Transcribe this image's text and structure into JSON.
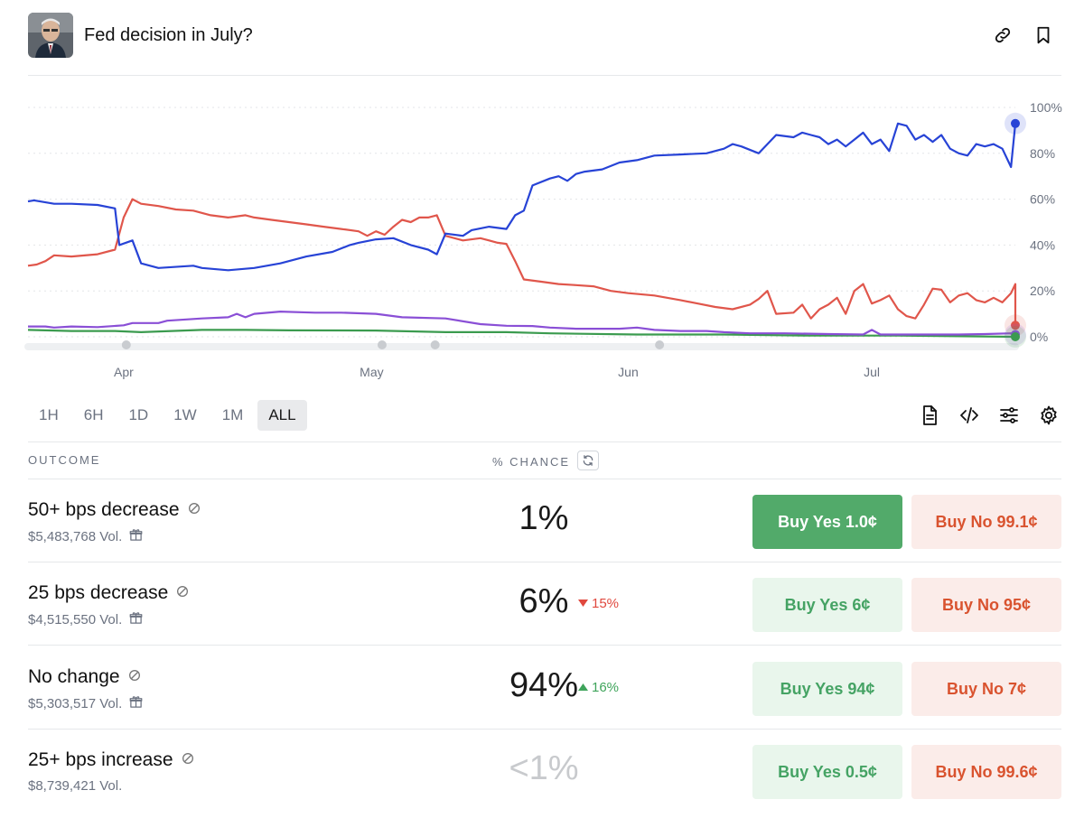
{
  "header": {
    "title": "Fed decision in July?"
  },
  "chart_data": {
    "type": "line",
    "x_labels": [
      "Apr",
      "May",
      "Jun",
      "Jul"
    ],
    "y_ticks": [
      "100%",
      "80%",
      "60%",
      "40%",
      "20%",
      "0%"
    ],
    "ylim": [
      0,
      100
    ],
    "grid": true,
    "series": [
      {
        "color": "#2743d6",
        "points": [
          [
            0,
            59
          ],
          [
            0.7,
            59.5
          ],
          [
            3,
            58
          ],
          [
            5,
            58
          ],
          [
            8,
            57.5
          ],
          [
            10,
            56
          ],
          [
            10.5,
            40
          ],
          [
            12,
            42
          ],
          [
            13,
            32
          ],
          [
            15,
            30
          ],
          [
            19,
            31
          ],
          [
            20,
            30
          ],
          [
            23,
            29
          ],
          [
            26,
            30
          ],
          [
            29,
            32
          ],
          [
            32,
            35
          ],
          [
            35,
            37
          ],
          [
            37,
            40
          ],
          [
            38,
            41
          ],
          [
            40,
            42.5
          ],
          [
            42,
            43
          ],
          [
            44,
            40
          ],
          [
            46,
            38
          ],
          [
            47,
            36
          ],
          [
            48,
            45
          ],
          [
            50,
            44
          ],
          [
            51,
            46.5
          ],
          [
            53,
            48
          ],
          [
            55,
            47
          ],
          [
            56,
            53
          ],
          [
            57,
            55
          ],
          [
            58,
            66
          ],
          [
            60,
            69
          ],
          [
            61,
            70
          ],
          [
            62,
            68
          ],
          [
            63,
            71
          ],
          [
            64,
            72
          ],
          [
            66,
            73
          ],
          [
            68,
            76
          ],
          [
            70,
            77
          ],
          [
            72,
            79
          ],
          [
            75,
            79.5
          ],
          [
            78,
            80
          ],
          [
            80,
            82
          ],
          [
            81,
            84
          ],
          [
            82,
            83
          ],
          [
            84,
            80
          ],
          [
            86,
            88
          ],
          [
            88,
            87
          ],
          [
            89,
            89
          ],
          [
            90,
            88
          ],
          [
            91,
            87
          ],
          [
            92,
            84
          ],
          [
            93,
            86
          ],
          [
            94,
            83
          ],
          [
            95,
            86
          ],
          [
            96,
            89
          ],
          [
            97,
            84
          ],
          [
            98,
            86
          ],
          [
            99,
            81
          ],
          [
            100,
            93
          ],
          [
            101,
            92
          ],
          [
            102,
            86
          ],
          [
            103,
            88
          ],
          [
            104,
            85
          ],
          [
            105,
            88
          ],
          [
            106,
            82
          ],
          [
            107,
            80
          ],
          [
            108,
            79
          ],
          [
            109,
            84
          ],
          [
            110,
            83
          ],
          [
            111,
            84
          ],
          [
            112,
            82
          ],
          [
            113,
            74
          ],
          [
            113.5,
            93
          ]
        ]
      },
      {
        "color": "#e0564b",
        "points": [
          [
            0,
            31
          ],
          [
            1,
            31.5
          ],
          [
            2,
            33
          ],
          [
            3,
            35.5
          ],
          [
            5,
            35
          ],
          [
            8,
            36
          ],
          [
            10,
            38
          ],
          [
            11,
            52
          ],
          [
            12,
            60
          ],
          [
            13,
            58
          ],
          [
            15,
            57
          ],
          [
            17,
            55.5
          ],
          [
            19,
            55
          ],
          [
            21,
            53
          ],
          [
            23,
            52
          ],
          [
            25,
            53
          ],
          [
            26,
            52
          ],
          [
            28,
            51
          ],
          [
            30,
            50
          ],
          [
            32,
            49
          ],
          [
            34,
            48
          ],
          [
            36,
            47
          ],
          [
            38,
            46
          ],
          [
            39,
            44
          ],
          [
            40,
            46
          ],
          [
            41,
            44.5
          ],
          [
            42,
            48
          ],
          [
            43,
            51
          ],
          [
            44,
            50
          ],
          [
            45,
            52
          ],
          [
            46,
            52
          ],
          [
            47,
            53
          ],
          [
            48,
            44
          ],
          [
            50,
            42
          ],
          [
            52,
            43
          ],
          [
            53,
            42
          ],
          [
            54,
            41
          ],
          [
            55,
            40.5
          ],
          [
            56,
            33
          ],
          [
            57,
            25
          ],
          [
            59,
            24
          ],
          [
            61,
            23
          ],
          [
            63,
            22.5
          ],
          [
            65,
            22
          ],
          [
            67,
            20
          ],
          [
            69,
            19
          ],
          [
            72,
            18
          ],
          [
            75,
            16
          ],
          [
            77,
            14.5
          ],
          [
            79,
            13
          ],
          [
            81,
            12
          ],
          [
            83,
            14
          ],
          [
            84,
            16.5
          ],
          [
            85,
            20
          ],
          [
            86,
            10
          ],
          [
            88,
            10.5
          ],
          [
            89,
            14
          ],
          [
            90,
            8
          ],
          [
            91,
            12
          ],
          [
            92,
            14
          ],
          [
            93,
            17
          ],
          [
            94,
            10
          ],
          [
            95,
            20
          ],
          [
            96,
            23
          ],
          [
            97,
            14.5
          ],
          [
            98,
            16
          ],
          [
            99,
            18
          ],
          [
            100,
            12
          ],
          [
            101,
            9
          ],
          [
            102,
            8
          ],
          [
            103,
            14
          ],
          [
            104,
            21
          ],
          [
            105,
            20.5
          ],
          [
            106,
            15
          ],
          [
            107,
            18
          ],
          [
            108,
            19
          ],
          [
            109,
            16
          ],
          [
            110,
            15
          ],
          [
            111,
            17
          ],
          [
            112,
            15
          ],
          [
            113,
            19
          ],
          [
            113.5,
            23
          ],
          [
            113.5,
            5
          ]
        ]
      },
      {
        "color": "#8a4fd6",
        "points": [
          [
            0,
            4.5
          ],
          [
            2,
            4.5
          ],
          [
            3,
            4
          ],
          [
            5,
            4.5
          ],
          [
            8,
            4.2
          ],
          [
            11,
            5
          ],
          [
            12,
            6
          ],
          [
            15,
            6
          ],
          [
            16,
            7
          ],
          [
            20,
            8
          ],
          [
            23,
            8.5
          ],
          [
            24,
            10
          ],
          [
            25,
            8.5
          ],
          [
            26,
            10
          ],
          [
            29,
            11
          ],
          [
            33,
            10.5
          ],
          [
            36,
            10.5
          ],
          [
            40,
            10
          ],
          [
            43,
            8.5
          ],
          [
            48,
            8
          ],
          [
            52,
            5.5
          ],
          [
            55,
            4.8
          ],
          [
            58,
            4.7
          ],
          [
            60,
            4
          ],
          [
            63,
            3.5
          ],
          [
            65,
            3.5
          ],
          [
            68,
            3.5
          ],
          [
            70,
            4
          ],
          [
            72,
            3
          ],
          [
            75,
            2.5
          ],
          [
            78,
            2.5
          ],
          [
            80,
            2
          ],
          [
            83,
            1.5
          ],
          [
            85,
            1.5
          ],
          [
            87,
            1.5
          ],
          [
            92,
            1.2
          ],
          [
            96,
            1
          ],
          [
            97,
            3
          ],
          [
            98,
            1
          ],
          [
            100,
            1
          ],
          [
            104,
            1
          ],
          [
            107,
            1
          ],
          [
            110,
            1.2
          ],
          [
            113,
            1.5
          ],
          [
            113.5,
            1
          ]
        ]
      },
      {
        "color": "#3b9b4f",
        "points": [
          [
            0,
            3
          ],
          [
            5,
            2.5
          ],
          [
            10,
            2.5
          ],
          [
            13,
            2
          ],
          [
            20,
            3
          ],
          [
            25,
            3
          ],
          [
            30,
            2.8
          ],
          [
            40,
            2.7
          ],
          [
            48,
            2
          ],
          [
            55,
            2
          ],
          [
            60,
            1.5
          ],
          [
            70,
            1
          ],
          [
            80,
            1
          ],
          [
            90,
            0.5
          ],
          [
            100,
            0.5
          ],
          [
            113.5,
            0
          ]
        ]
      }
    ]
  },
  "time_ranges": [
    "1H",
    "6H",
    "1D",
    "1W",
    "1M",
    "ALL"
  ],
  "active_range": "ALL",
  "table": {
    "outcome_header": "OUTCOME",
    "chance_header": "% CHANCE",
    "rows": [
      {
        "name": "50+ bps decrease",
        "volume": "$5,483,768 Vol.",
        "chance": "1%",
        "delta": "",
        "delta_dir": "",
        "yes": "Buy Yes 1.0¢",
        "no": "Buy No 99.1¢",
        "gift": true
      },
      {
        "name": "25 bps decrease",
        "volume": "$4,515,550 Vol.",
        "chance": "6%",
        "delta": "15%",
        "delta_dir": "down",
        "yes": "Buy Yes 6¢",
        "no": "Buy No 95¢",
        "gift": true
      },
      {
        "name": "No change",
        "volume": "$5,303,517 Vol.",
        "chance": "94%",
        "delta": "16%",
        "delta_dir": "up",
        "yes": "Buy Yes 94¢",
        "no": "Buy No 7¢",
        "gift": true
      },
      {
        "name": "25+ bps increase",
        "volume": "$8,739,421 Vol.",
        "chance": "<1%",
        "delta": "",
        "delta_dir": "",
        "yes": "Buy Yes 0.5¢",
        "no": "Buy No 99.6¢",
        "gift": false
      }
    ]
  }
}
